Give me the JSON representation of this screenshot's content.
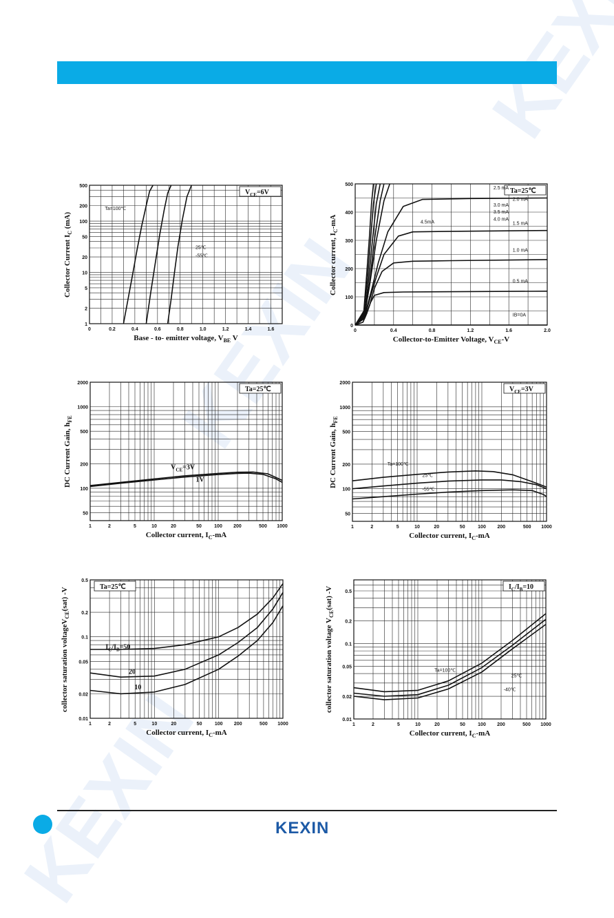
{
  "brand": {
    "logo_text": "KEXIN",
    "accent": "#0aabe6",
    "logo_color": "#1d5aa6"
  },
  "charts": [
    {
      "xlabel": "Base - to- emitter voltage, V",
      "xlabel_sub": "BE",
      "xlabel_suffix": " V",
      "ylabel": "Collector Current I",
      "ylabel_sub": "C",
      "ylabel_suffix": " (mA)"
    },
    {
      "xlabel": "Collector-to-Emitter Voltage, V",
      "xlabel_sub": "CE",
      "xlabel_suffix": "-V",
      "ylabel": "Collector current, I",
      "ylabel_sub": "C",
      "ylabel_suffix": "-mA"
    },
    {
      "xlabel": "Collector current, I",
      "xlabel_sub": "C",
      "xlabel_suffix": "-mA",
      "ylabel": "DC Current Gain, h",
      "ylabel_sub": "FE",
      "ylabel_suffix": ""
    },
    {
      "xlabel": "Collector current, I",
      "xlabel_sub": "C",
      "xlabel_suffix": "-mA",
      "ylabel": "DC Current Gain, h",
      "ylabel_sub": "FE",
      "ylabel_suffix": ""
    },
    {
      "xlabel": "Collector current, I",
      "xlabel_sub": "C",
      "xlabel_suffix": "-mA",
      "ylabel": "collector saturation voltageV",
      "ylabel_sub": "CE",
      "ylabel_suffix": "(sat) -V"
    },
    {
      "xlabel": "Collector current, I",
      "xlabel_sub": "C",
      "xlabel_suffix": "-mA",
      "ylabel": "collector saturation voltage V",
      "ylabel_sub": "CE",
      "ylabel_suffix": "(sat) -V"
    }
  ],
  "chart_data": [
    {
      "type": "line",
      "xscale": "linear",
      "yscale": "log",
      "xlim": [
        0,
        1.7
      ],
      "ylim": [
        1,
        500
      ],
      "xticks": [
        0,
        0.2,
        0.4,
        0.6,
        0.8,
        1.0,
        1.2,
        1.4,
        1.6
      ],
      "xtick_labels": [
        "0",
        "0.2",
        "0.4",
        "0.6",
        "0.8",
        "1.0",
        "1.2",
        "1.4",
        "1.6"
      ],
      "yticks": [
        1,
        2,
        5,
        10,
        20,
        50,
        100,
        200,
        500
      ],
      "ytick_labels": [
        "1",
        "2",
        "5",
        "10",
        "20",
        "50",
        "100",
        "200",
        "500"
      ],
      "box_label": "V",
      "box_label_sub": "CE",
      "box_label_suffix": "=6V",
      "series": [
        {
          "name": "Ta=100℃",
          "x": [
            0.3,
            0.34,
            0.38,
            0.42,
            0.46,
            0.5,
            0.53,
            0.56
          ],
          "y": [
            1,
            3,
            9,
            28,
            80,
            200,
            380,
            500
          ]
        },
        {
          "name": "25℃",
          "x": [
            0.5,
            0.54,
            0.58,
            0.62,
            0.66,
            0.69,
            0.72
          ],
          "y": [
            1,
            4,
            15,
            55,
            170,
            350,
            500
          ]
        },
        {
          "name": "-55℃",
          "x": [
            0.69,
            0.72,
            0.75,
            0.78,
            0.82,
            0.86,
            0.9
          ],
          "y": [
            1,
            3,
            10,
            32,
            110,
            300,
            500
          ]
        }
      ],
      "annotations": [
        "Ta=100℃",
        "25℃",
        "-55℃"
      ]
    },
    {
      "type": "line",
      "xscale": "linear",
      "yscale": "linear",
      "xlim": [
        0,
        2.0
      ],
      "ylim": [
        0,
        500
      ],
      "xticks": [
        0,
        0.4,
        0.8,
        1.2,
        1.6,
        2.0
      ],
      "xtick_labels": [
        "0",
        "0.4",
        "0.8",
        "1.2",
        "1.6",
        "2.0"
      ],
      "yticks": [
        0,
        100,
        200,
        300,
        400,
        500
      ],
      "ytick_labels": [
        "0",
        "100",
        "200",
        "300",
        "400",
        "500"
      ],
      "box_label": "Ta=25℃",
      "series": [
        {
          "name": "IB=0A",
          "x": [
            0,
            2.0
          ],
          "y": [
            0,
            0
          ]
        },
        {
          "name": "0.5 mA",
          "x": [
            0,
            0.08,
            0.12,
            0.16,
            0.2,
            0.3,
            0.5,
            1.0,
            2.0
          ],
          "y": [
            0,
            10,
            40,
            80,
            105,
            115,
            117,
            118,
            120
          ]
        },
        {
          "name": "1.0 mA",
          "x": [
            0,
            0.1,
            0.15,
            0.2,
            0.28,
            0.4,
            0.6,
            1.0,
            2.0
          ],
          "y": [
            0,
            25,
            70,
            130,
            190,
            220,
            226,
            228,
            232
          ]
        },
        {
          "name": "1.5 mA",
          "x": [
            0,
            0.1,
            0.15,
            0.22,
            0.3,
            0.45,
            0.6,
            1.0,
            2.0
          ],
          "y": [
            0,
            30,
            90,
            170,
            250,
            315,
            330,
            332,
            335
          ]
        },
        {
          "name": "2.0 mA",
          "x": [
            0,
            0.1,
            0.16,
            0.24,
            0.34,
            0.5,
            0.7,
            1.2,
            2.0
          ],
          "y": [
            0,
            35,
            110,
            220,
            330,
            420,
            445,
            448,
            450
          ]
        },
        {
          "name": "2.5 mA",
          "x": [
            0,
            0.1,
            0.15,
            0.22,
            0.3,
            0.36
          ],
          "y": [
            0,
            40,
            140,
            300,
            440,
            500
          ]
        },
        {
          "name": "3.0 mA",
          "x": [
            0,
            0.1,
            0.15,
            0.2,
            0.26,
            0.3
          ],
          "y": [
            0,
            42,
            150,
            300,
            440,
            500
          ]
        },
        {
          "name": "3.5 mA",
          "x": [
            0,
            0.1,
            0.14,
            0.18,
            0.22,
            0.26
          ],
          "y": [
            0,
            45,
            160,
            300,
            430,
            500
          ]
        },
        {
          "name": "4.0 mA",
          "x": [
            0,
            0.09,
            0.13,
            0.16,
            0.19,
            0.22
          ],
          "y": [
            0,
            45,
            170,
            300,
            430,
            500
          ]
        },
        {
          "name": "4.5 mA",
          "x": [
            0,
            0.09,
            0.12,
            0.15,
            0.17,
            0.19
          ],
          "y": [
            0,
            50,
            180,
            320,
            430,
            500
          ]
        }
      ],
      "annotations": [
        "2.5 mA",
        "3.0 mA",
        "3.5 mA",
        "4.0 mA",
        "4.5mA",
        "2.0 mA",
        "1.5 mA",
        "1.0 mA",
        "0.5 mA",
        "IB=0A"
      ]
    },
    {
      "type": "line",
      "xscale": "log",
      "yscale": "log",
      "xlim": [
        1,
        1000
      ],
      "ylim": [
        40,
        2000
      ],
      "xticks": [
        1,
        2,
        5,
        10,
        20,
        50,
        100,
        200,
        500,
        1000
      ],
      "xtick_labels": [
        "1",
        "2",
        "5",
        "10",
        "20",
        "50",
        "100",
        "200",
        "500",
        "1000"
      ],
      "yticks": [
        50,
        100,
        200,
        500,
        1000,
        2000
      ],
      "ytick_labels": [
        "50",
        "100",
        "200",
        "500",
        "1000",
        "2000"
      ],
      "box_label": "Ta=25℃",
      "series": [
        {
          "name": "VCE=3V",
          "x": [
            1,
            3,
            10,
            30,
            100,
            200,
            350,
            600,
            1000
          ],
          "y": [
            108,
            118,
            130,
            142,
            152,
            157,
            158,
            150,
            125
          ]
        },
        {
          "name": "1V",
          "x": [
            1,
            3,
            10,
            30,
            100,
            200,
            300,
            500,
            800,
            1000
          ],
          "y": [
            105,
            115,
            126,
            137,
            147,
            152,
            153,
            148,
            130,
            118
          ]
        }
      ],
      "annotations": [
        "V",
        "1V"
      ],
      "annotation_sub": "CE",
      "annotation_suffix": "=3V"
    },
    {
      "type": "line",
      "xscale": "log",
      "yscale": "log",
      "xlim": [
        1,
        1000
      ],
      "ylim": [
        40,
        2000
      ],
      "xticks": [
        1,
        2,
        5,
        10,
        20,
        50,
        100,
        200,
        500,
        1000
      ],
      "xtick_labels": [
        "1",
        "2",
        "5",
        "10",
        "20",
        "50",
        "100",
        "200",
        "500",
        "1000"
      ],
      "yticks": [
        50,
        100,
        200,
        500,
        1000,
        2000
      ],
      "ytick_labels": [
        "50",
        "100",
        "200",
        "500",
        "1000",
        "2000"
      ],
      "box_label": "V",
      "box_label_sub": "CE",
      "box_label_suffix": "=3V",
      "series": [
        {
          "name": "Ta=100℃",
          "x": [
            1,
            3,
            10,
            30,
            80,
            150,
            300,
            600,
            1000
          ],
          "y": [
            125,
            138,
            150,
            160,
            165,
            162,
            148,
            122,
            105
          ]
        },
        {
          "name": "25℃",
          "x": [
            1,
            3,
            10,
            30,
            100,
            200,
            400,
            700,
            1000
          ],
          "y": [
            100,
            108,
            117,
            124,
            128,
            128,
            122,
            112,
            100
          ]
        },
        {
          "name": "-55℃",
          "x": [
            1,
            3,
            10,
            30,
            100,
            300,
            600,
            900,
            1000
          ],
          "y": [
            75,
            80,
            86,
            91,
            95,
            97,
            95,
            85,
            80
          ]
        }
      ],
      "annotations": [
        "Ta=100℃",
        "25℃",
        "-55℃"
      ]
    },
    {
      "type": "line",
      "xscale": "log",
      "yscale": "log",
      "xlim": [
        1,
        1000
      ],
      "ylim": [
        0.01,
        0.5
      ],
      "xticks": [
        1,
        2,
        5,
        10,
        20,
        50,
        100,
        200,
        500,
        1000
      ],
      "xtick_labels": [
        "1",
        "2",
        "5",
        "10",
        "20",
        "50",
        "100",
        "200",
        "500",
        "1000"
      ],
      "yticks": [
        0.01,
        0.02,
        0.05,
        0.1,
        0.2,
        0.5
      ],
      "ytick_labels": [
        "0.01",
        "0.02",
        "0.05",
        "0.1",
        "0.2",
        "0.5"
      ],
      "box_label": "Ta=25℃",
      "series": [
        {
          "name": "IC/IB=50",
          "x": [
            1,
            3,
            10,
            30,
            100,
            200,
            400,
            700,
            1000
          ],
          "y": [
            0.07,
            0.07,
            0.072,
            0.08,
            0.1,
            0.13,
            0.19,
            0.3,
            0.45
          ]
        },
        {
          "name": "20",
          "x": [
            1,
            3,
            10,
            30,
            100,
            200,
            400,
            700,
            1000
          ],
          "y": [
            0.036,
            0.032,
            0.033,
            0.04,
            0.06,
            0.085,
            0.13,
            0.22,
            0.35
          ]
        },
        {
          "name": "10",
          "x": [
            1,
            3,
            10,
            30,
            100,
            200,
            400,
            700,
            1000
          ],
          "y": [
            0.022,
            0.02,
            0.021,
            0.026,
            0.04,
            0.058,
            0.09,
            0.15,
            0.24
          ]
        }
      ],
      "annotations": [
        "I",
        "20",
        "10"
      ],
      "annotation_sub": "C",
      "annotation_mid": "/I",
      "annotation_sub2": "B",
      "annotation_suffix": "=50"
    },
    {
      "type": "line",
      "xscale": "log",
      "yscale": "log",
      "xlim": [
        1,
        1000
      ],
      "ylim": [
        0.01,
        0.7
      ],
      "xticks": [
        1,
        2,
        5,
        10,
        20,
        50,
        100,
        200,
        500,
        1000
      ],
      "xtick_labels": [
        "1",
        "2",
        "5",
        "10",
        "20",
        "50",
        "100",
        "200",
        "500",
        "1000"
      ],
      "yticks": [
        0.01,
        0.02,
        0.05,
        0.1,
        0.2,
        0.5
      ],
      "ytick_labels": [
        "0.01",
        "0.02",
        "0.05",
        "0.1",
        "0.2",
        "0.5"
      ],
      "box_label": "I",
      "box_label_sub": "C",
      "box_label_mid": "/I",
      "box_label_sub2": "B",
      "box_label_suffix": "=10",
      "series": [
        {
          "name": "Ta=100℃",
          "x": [
            1,
            3,
            10,
            30,
            100,
            300,
            1000
          ],
          "y": [
            0.026,
            0.023,
            0.024,
            0.032,
            0.055,
            0.11,
            0.25
          ]
        },
        {
          "name": "25℃",
          "x": [
            1,
            3,
            10,
            30,
            100,
            300,
            1000
          ],
          "y": [
            0.022,
            0.02,
            0.021,
            0.028,
            0.048,
            0.095,
            0.21
          ]
        },
        {
          "name": "-40℃",
          "x": [
            1,
            3,
            10,
            30,
            100,
            300,
            1000
          ],
          "y": [
            0.02,
            0.018,
            0.019,
            0.025,
            0.042,
            0.085,
            0.18
          ]
        }
      ],
      "annotations": [
        "Ta=100℃",
        "25℃",
        "-40℃"
      ]
    }
  ]
}
